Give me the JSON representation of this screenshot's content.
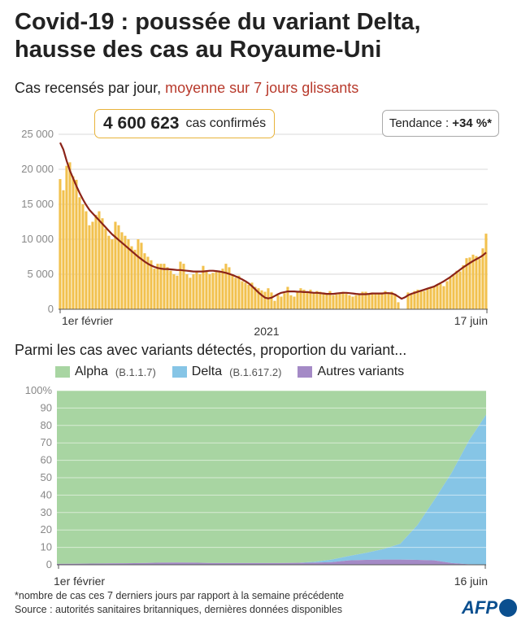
{
  "title": {
    "line1": "Covid-19 : poussée du variant Delta,",
    "line2": "hausse des cas au Royaume-Uni"
  },
  "subtitle": {
    "main": "Cas recensés par jour,",
    "accent": "moyenne sur 7 jours glissants"
  },
  "total_box": {
    "number": "4 600 623",
    "label": "cas confirmés"
  },
  "trend_box": {
    "label": "Tendance :",
    "value": "+34 %*"
  },
  "section2_title": "Parmi les cas avec variants détectés, proportion du variant...",
  "footnote": {
    "line1": "*nombre de cas ces 7 derniers jours par rapport à la semaine précédente",
    "line2": "Source : autorités sanitaires britanniques, dernières données disponibles"
  },
  "logo": "AFP",
  "colors": {
    "bars": "#f2c14e",
    "avg_line": "#8b2318",
    "alpha": "#a8d5a2",
    "delta": "#86c5e6",
    "others": "#a48ac6",
    "accent_text": "#b83a2c",
    "box_border": "#e8b33b"
  },
  "chart_data": [
    {
      "type": "bar",
      "title": "Cas recensés par jour",
      "ylim": [
        0,
        25000
      ],
      "yticks": [
        0,
        5000,
        10000,
        15000,
        20000,
        25000
      ],
      "ytick_labels": [
        "0",
        "5 000",
        "10 000",
        "15 000",
        "20 000",
        "25 000"
      ],
      "x_start_label": "1er février",
      "x_end_label": "17 juin",
      "year_label": "2021",
      "grid": true,
      "series": [
        {
          "name": "Cas recensés par jour",
          "values": [
            18600,
            17000,
            20500,
            21000,
            19000,
            18500,
            16000,
            15000,
            14000,
            12000,
            12500,
            13500,
            14000,
            13000,
            11500,
            10500,
            10000,
            12500,
            12000,
            11000,
            10500,
            10000,
            9000,
            8500,
            10000,
            9500,
            8000,
            7500,
            7000,
            5800,
            6500,
            6500,
            6500,
            6000,
            5500,
            5000,
            4800,
            6800,
            6500,
            5000,
            4500,
            5000,
            5500,
            5000,
            6200,
            5500,
            5000,
            5200,
            5300,
            5400,
            5800,
            6500,
            6000,
            5000,
            4500,
            4800,
            4000,
            3800,
            3500,
            3800,
            3200,
            3000,
            2700,
            2500,
            3000,
            2400,
            1200,
            2000,
            1800,
            2300,
            3200,
            2000,
            1800,
            2500,
            3000,
            2800,
            2400,
            2800,
            2300,
            2600,
            2500,
            2400,
            2200,
            2600,
            2000,
            2100,
            2300,
            2500,
            2200,
            2000,
            1800,
            2000,
            2100,
            2500,
            2500,
            2200,
            2400,
            2300,
            2200,
            2400,
            2600,
            2400,
            2500,
            2200,
            1000,
            0,
            0,
            2400,
            2300,
            2600,
            2800,
            2600,
            2600,
            2900,
            3000,
            3200,
            3500,
            3600,
            3300,
            4000,
            4500,
            5000,
            5500,
            5400,
            6300,
            7300,
            7400,
            7800,
            7600,
            7200,
            8700,
            10800
          ]
        },
        {
          "name": "moyenne sur 7 jours glissants",
          "values": [
            23800,
            22800,
            21200,
            19800,
            18700,
            17600,
            16600,
            15700,
            14900,
            14200,
            13700,
            13200,
            12700,
            12200,
            11700,
            11200,
            10700,
            10300,
            9900,
            9500,
            9100,
            8700,
            8300,
            7900,
            7500,
            7150,
            6800,
            6500,
            6250,
            6050,
            5900,
            5800,
            5750,
            5750,
            5700,
            5650,
            5600,
            5600,
            5550,
            5500,
            5450,
            5400,
            5400,
            5400,
            5400,
            5450,
            5500,
            5500,
            5450,
            5400,
            5300,
            5200,
            5050,
            4900,
            4700,
            4500,
            4250,
            4000,
            3700,
            3300,
            2850,
            2400,
            2000,
            1650,
            1550,
            1650,
            1900,
            2150,
            2350,
            2450,
            2550,
            2550,
            2550,
            2500,
            2500,
            2450,
            2450,
            2400,
            2350,
            2350,
            2300,
            2250,
            2200,
            2200,
            2200,
            2250,
            2300,
            2350,
            2350,
            2300,
            2250,
            2200,
            2150,
            2150,
            2150,
            2200,
            2250,
            2250,
            2250,
            2250,
            2300,
            2300,
            2250,
            2100,
            1800,
            1500,
            1700,
            2000,
            2200,
            2350,
            2500,
            2650,
            2800,
            2950,
            3100,
            3250,
            3500,
            3750,
            4000,
            4300,
            4600,
            4950,
            5300,
            5650,
            6000,
            6300,
            6600,
            6900,
            7150,
            7400,
            7700,
            8100
          ]
        }
      ]
    },
    {
      "type": "area",
      "title": "Parmi les cas avec variants détectés, proportion du variant...",
      "ylim": [
        0,
        100
      ],
      "yticks": [
        0,
        10,
        20,
        30,
        40,
        50,
        60,
        70,
        80,
        90,
        100
      ],
      "ytick_labels": [
        "0",
        "10",
        "20",
        "30",
        "40",
        "50",
        "60",
        "70",
        "80",
        "90",
        "100%"
      ],
      "x_start_label": "1er février",
      "x_end_label": "16 juin",
      "stacked": true,
      "series": [
        {
          "name": "Autres variants",
          "code": "",
          "values": [
            0.5,
            0.6,
            0.7,
            0.8,
            0.9,
            1.0,
            1.2,
            1.3,
            1.2,
            1.0,
            1.0,
            1.0,
            1.0,
            1.0,
            1.1,
            1.2,
            1.5,
            2.5,
            2.8,
            3.0,
            3.0,
            2.8,
            2.5,
            1.0,
            0.3,
            0.2
          ]
        },
        {
          "name": "Delta",
          "code": "(B.1.617.2)",
          "values": [
            0.0,
            0.0,
            0.0,
            0.0,
            0.0,
            0.0,
            0.0,
            0.0,
            0.0,
            0.0,
            0.0,
            0.0,
            0.0,
            0.0,
            0.0,
            0.5,
            1.5,
            2.5,
            4.0,
            6.0,
            9.0,
            20.0,
            35.0,
            52.0,
            71.0,
            86.0
          ]
        },
        {
          "name": "Alpha",
          "code": "(B.1.1.7)",
          "values": [
            99.5,
            99.4,
            99.3,
            99.2,
            99.1,
            99.0,
            98.8,
            98.7,
            98.8,
            99.0,
            99.0,
            99.0,
            99.0,
            99.0,
            98.9,
            98.3,
            97.0,
            95.0,
            93.2,
            91.0,
            88.0,
            77.2,
            62.5,
            47.0,
            28.7,
            13.8
          ]
        }
      ]
    }
  ]
}
